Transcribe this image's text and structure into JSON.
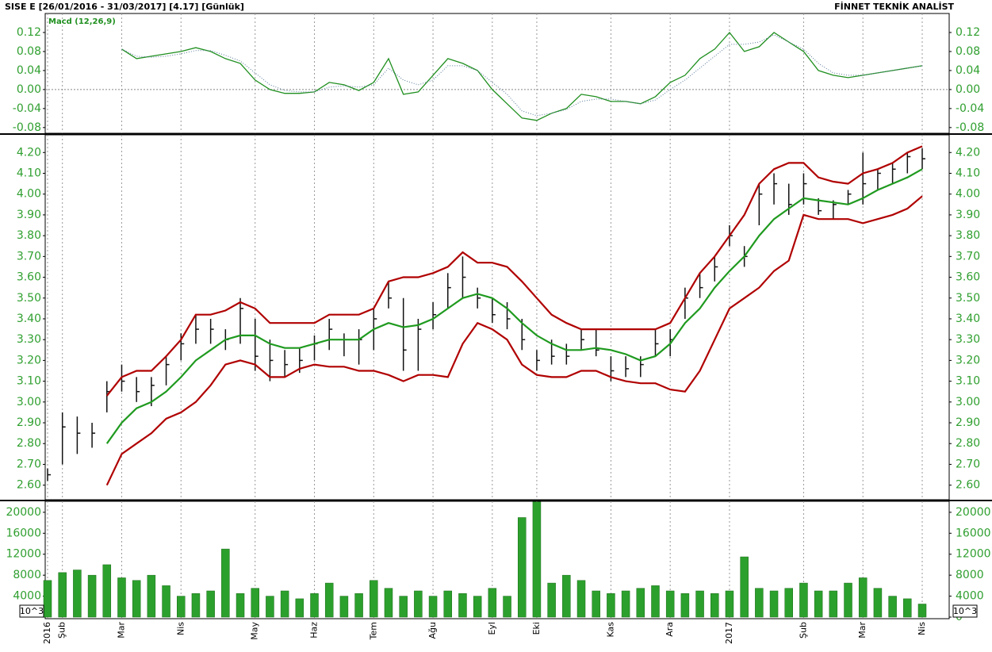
{
  "header": {
    "title": "SISE  E  [26/01/2016 - 31/03/2017]  [4.17]  [Günlük]",
    "brand": "FİNNET TEKNİK ANALİST"
  },
  "chart_data": [
    {
      "type": "line",
      "title": "Macd (12,26,9)",
      "zero_line": true,
      "ylim": [
        -0.092,
        0.16
      ],
      "yticks": [
        -0.08,
        -0.04,
        {
          "value": 0,
          "label": "0.00"
        },
        0.04,
        0.08,
        0.12
      ],
      "series": [
        {
          "color": "#1f8f1f",
          "style": "solid",
          "values": [
            null,
            null,
            null,
            null,
            null,
            0.085,
            0.065,
            0.07,
            0.075,
            0.08,
            0.088,
            0.08,
            0.065,
            0.055,
            0.02,
            0.0,
            -0.008,
            -0.008,
            -0.005,
            0.015,
            0.01,
            -0.002,
            0.015,
            0.065,
            -0.01,
            -0.005,
            0.03,
            0.065,
            0.055,
            0.04,
            0.0,
            -0.03,
            -0.06,
            -0.065,
            -0.05,
            -0.04,
            -0.01,
            -0.015,
            -0.025,
            -0.025,
            -0.03,
            -0.015,
            0.015,
            0.03,
            0.065,
            0.085,
            0.12,
            0.08,
            0.09,
            0.12,
            0.1,
            0.08,
            0.04,
            0.03,
            0.025,
            0.03,
            0.035,
            0.04,
            0.045,
            0.05
          ]
        },
        {
          "color": "#5a7a9a",
          "style": "dotted",
          "values": [
            null,
            null,
            null,
            null,
            null,
            0.085,
            0.07,
            0.068,
            0.07,
            0.075,
            0.082,
            0.082,
            0.072,
            0.06,
            0.035,
            0.01,
            -0.002,
            -0.005,
            -0.005,
            0.005,
            0.008,
            0.005,
            0.01,
            0.045,
            0.02,
            0.01,
            0.02,
            0.05,
            0.05,
            0.04,
            0.015,
            -0.01,
            -0.045,
            -0.055,
            -0.05,
            -0.042,
            -0.025,
            -0.02,
            -0.02,
            -0.025,
            -0.03,
            -0.022,
            0.0,
            0.02,
            0.045,
            0.07,
            0.095,
            0.095,
            0.1,
            0.115,
            0.1,
            0.085,
            0.055,
            0.035,
            0.03,
            0.03,
            0.035,
            0.04,
            0.045,
            0.05
          ]
        }
      ]
    },
    {
      "type": "hlc",
      "color": "#111111",
      "ylim": [
        2.53,
        4.285
      ],
      "yticks": [
        {
          "value": 2.6,
          "label": "2.60"
        },
        {
          "value": 2.7,
          "label": "2.70"
        },
        {
          "value": 2.8,
          "label": "2.80"
        },
        {
          "value": 2.9,
          "label": "2.90"
        },
        {
          "value": 3.0,
          "label": "3.00"
        },
        {
          "value": 3.1,
          "label": "3.10"
        },
        {
          "value": 3.2,
          "label": "3.20"
        },
        {
          "value": 3.3,
          "label": "3.30"
        },
        {
          "value": 3.4,
          "label": "3.40"
        },
        {
          "value": 3.5,
          "label": "3.50"
        },
        {
          "value": 3.6,
          "label": "3.60"
        },
        {
          "value": 3.7,
          "label": "3.70"
        },
        {
          "value": 3.8,
          "label": "3.80"
        },
        {
          "value": 3.9,
          "label": "3.90"
        },
        {
          "value": 4.0,
          "label": "4.00"
        },
        {
          "value": 4.1,
          "label": "4.10"
        },
        {
          "value": 4.2,
          "label": "4.20"
        }
      ],
      "high": [
        2.68,
        2.95,
        2.93,
        2.9,
        3.1,
        3.18,
        3.12,
        3.12,
        3.22,
        3.33,
        3.42,
        3.4,
        3.35,
        3.5,
        3.4,
        3.3,
        3.25,
        3.26,
        3.32,
        3.4,
        3.33,
        3.35,
        3.45,
        3.58,
        3.5,
        3.4,
        3.48,
        3.62,
        3.7,
        3.55,
        3.5,
        3.48,
        3.4,
        3.25,
        3.3,
        3.28,
        3.35,
        3.35,
        3.22,
        3.22,
        3.22,
        3.35,
        3.35,
        3.55,
        3.62,
        3.7,
        3.85,
        3.75,
        4.05,
        4.1,
        4.05,
        4.1,
        3.98,
        3.97,
        4.02,
        4.2,
        4.12,
        4.15,
        4.2,
        4.22
      ],
      "low": [
        2.62,
        2.7,
        2.75,
        2.78,
        2.95,
        3.05,
        3.0,
        2.98,
        3.08,
        3.2,
        3.28,
        3.28,
        3.25,
        3.28,
        3.15,
        3.1,
        3.12,
        3.14,
        3.2,
        3.25,
        3.22,
        3.18,
        3.25,
        3.45,
        3.15,
        3.15,
        3.35,
        3.45,
        3.5,
        3.45,
        3.38,
        3.35,
        3.25,
        3.15,
        3.18,
        3.18,
        3.25,
        3.22,
        3.1,
        3.12,
        3.12,
        3.22,
        3.22,
        3.4,
        3.5,
        3.58,
        3.75,
        3.65,
        3.85,
        3.95,
        3.9,
        3.95,
        3.9,
        3.88,
        3.95,
        3.95,
        4.02,
        4.05,
        4.1,
        4.12
      ],
      "close": [
        2.65,
        2.88,
        2.85,
        2.85,
        3.05,
        3.1,
        3.05,
        3.08,
        3.18,
        3.28,
        3.35,
        3.35,
        3.3,
        3.45,
        3.22,
        3.2,
        3.18,
        3.2,
        3.28,
        3.35,
        3.3,
        3.3,
        3.4,
        3.5,
        3.25,
        3.35,
        3.42,
        3.55,
        3.6,
        3.5,
        3.42,
        3.4,
        3.3,
        3.2,
        3.22,
        3.22,
        3.3,
        3.25,
        3.15,
        3.16,
        3.18,
        3.28,
        3.3,
        3.5,
        3.55,
        3.65,
        3.8,
        3.7,
        4.0,
        4.05,
        3.95,
        4.05,
        3.92,
        3.95,
        4.0,
        4.05,
        4.1,
        4.12,
        4.18,
        4.17
      ],
      "series": [
        {
          "color": "#b00000",
          "values": [
            null,
            null,
            null,
            null,
            3.03,
            3.12,
            3.15,
            3.15,
            3.22,
            3.3,
            3.42,
            3.42,
            3.44,
            3.48,
            3.45,
            3.38,
            3.38,
            3.38,
            3.38,
            3.42,
            3.42,
            3.42,
            3.45,
            3.58,
            3.6,
            3.6,
            3.62,
            3.65,
            3.72,
            3.67,
            3.67,
            3.65,
            3.58,
            3.5,
            3.42,
            3.38,
            3.35,
            3.35,
            3.35,
            3.35,
            3.35,
            3.35,
            3.38,
            3.5,
            3.62,
            3.7,
            3.8,
            3.9,
            4.05,
            4.12,
            4.15,
            4.15,
            4.08,
            4.06,
            4.05,
            4.1,
            4.12,
            4.15,
            4.2,
            4.23
          ]
        },
        {
          "color": "#1f9a1f",
          "values": [
            null,
            null,
            null,
            null,
            2.8,
            2.9,
            2.97,
            3.0,
            3.05,
            3.12,
            3.2,
            3.25,
            3.3,
            3.32,
            3.32,
            3.28,
            3.26,
            3.26,
            3.28,
            3.3,
            3.3,
            3.3,
            3.35,
            3.38,
            3.36,
            3.37,
            3.4,
            3.45,
            3.5,
            3.52,
            3.5,
            3.45,
            3.38,
            3.32,
            3.28,
            3.25,
            3.25,
            3.26,
            3.25,
            3.23,
            3.2,
            3.22,
            3.28,
            3.38,
            3.45,
            3.55,
            3.63,
            3.7,
            3.8,
            3.88,
            3.93,
            3.98,
            3.97,
            3.96,
            3.95,
            3.98,
            4.02,
            4.05,
            4.08,
            4.12
          ]
        },
        {
          "color": "#b00000",
          "values": [
            null,
            null,
            null,
            null,
            2.6,
            2.75,
            2.8,
            2.85,
            2.92,
            2.95,
            3.0,
            3.08,
            3.18,
            3.2,
            3.18,
            3.12,
            3.12,
            3.16,
            3.18,
            3.17,
            3.17,
            3.15,
            3.15,
            3.13,
            3.1,
            3.13,
            3.13,
            3.12,
            3.28,
            3.38,
            3.35,
            3.3,
            3.18,
            3.13,
            3.12,
            3.12,
            3.15,
            3.15,
            3.12,
            3.1,
            3.09,
            3.09,
            3.06,
            3.05,
            3.15,
            3.3,
            3.45,
            3.5,
            3.55,
            3.63,
            3.68,
            3.9,
            3.88,
            3.88,
            3.88,
            3.86,
            3.88,
            3.9,
            3.93,
            3.99
          ]
        }
      ]
    },
    {
      "type": "bar",
      "color": "#2ca02c",
      "unit_label": "10^3",
      "ylim": [
        -300,
        22100
      ],
      "yticks": [
        0,
        4000,
        8000,
        12000,
        16000,
        20000
      ],
      "categories": [
        "2016",
        "Şub",
        null,
        null,
        null,
        "Mar",
        null,
        null,
        null,
        "Nis",
        null,
        null,
        null,
        null,
        "May",
        null,
        null,
        null,
        "Haz",
        null,
        null,
        null,
        "Tem",
        null,
        null,
        null,
        "Ağu",
        null,
        null,
        null,
        "Eyl",
        null,
        null,
        "Eki",
        null,
        null,
        null,
        null,
        "Kas",
        null,
        null,
        null,
        "Ara",
        null,
        null,
        null,
        "2017",
        null,
        null,
        null,
        null,
        "Şub",
        null,
        null,
        null,
        "Mar",
        null,
        null,
        null,
        "Nis"
      ],
      "values": [
        7000,
        8500,
        9000,
        8000,
        10000,
        7500,
        7000,
        8000,
        6000,
        4000,
        4500,
        5000,
        13000,
        4500,
        5500,
        4000,
        5000,
        3500,
        4500,
        6500,
        4000,
        4500,
        7000,
        5500,
        4000,
        5000,
        4000,
        5000,
        4500,
        4000,
        5500,
        4000,
        19000,
        22000,
        6500,
        8000,
        7000,
        5000,
        4500,
        5000,
        5500,
        6000,
        5000,
        4500,
        5000,
        4500,
        5000,
        11500,
        5500,
        5000,
        5500,
        6500,
        5000,
        5000,
        6500,
        7500,
        5500,
        4000,
        3500,
        2500
      ]
    }
  ]
}
